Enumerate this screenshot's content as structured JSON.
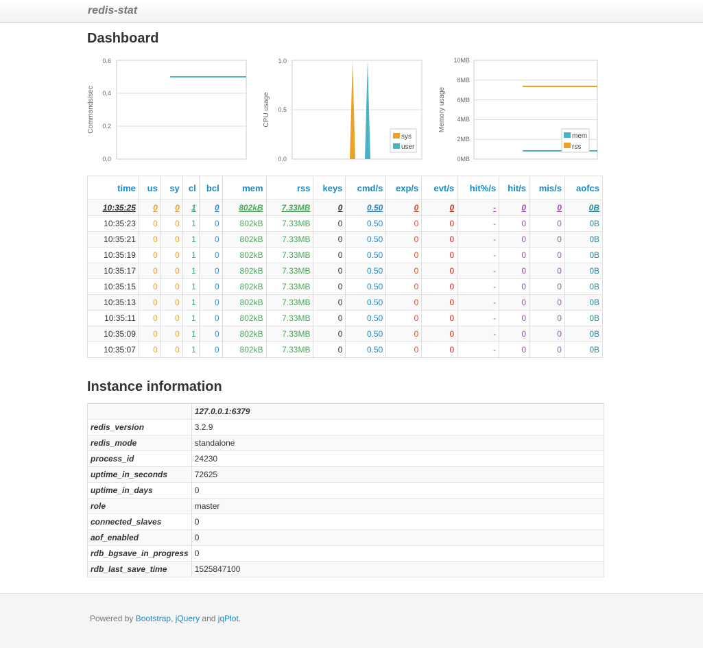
{
  "app": {
    "brand": "redis-stat"
  },
  "dashboard": {
    "title": "Dashboard"
  },
  "charts": [
    {
      "type": "line",
      "ylabel": "Commands/sec",
      "yticks": [
        "0.6",
        "0.4",
        "0.2",
        "0.0"
      ],
      "ylim": [
        0,
        0.6
      ],
      "series": [
        {
          "color": "#4bb2c5",
          "values": [
            0.5,
            0.5
          ]
        }
      ]
    },
    {
      "type": "area",
      "ylabel": "CPU usage",
      "yticks": [
        "1.0",
        "0.5",
        "0.0"
      ],
      "ylim": [
        0,
        1
      ],
      "legend": [
        "sys",
        "user"
      ],
      "series": [
        {
          "name": "sys",
          "color": "#eaa228",
          "peak": 1.0
        },
        {
          "name": "user",
          "color": "#4bb2c5",
          "peak": 1.0
        }
      ]
    },
    {
      "type": "line",
      "ylabel": "Memory usage",
      "yticks": [
        "10MB",
        "8MB",
        "6MB",
        "4MB",
        "2MB",
        "0MB"
      ],
      "ylim": [
        0,
        10
      ],
      "legend": [
        "mem",
        "rss"
      ],
      "series": [
        {
          "name": "mem",
          "color": "#4bb2c5",
          "value": 0.8
        },
        {
          "name": "rss",
          "color": "#eaa228",
          "value": 7.33
        }
      ]
    }
  ],
  "chart_data": [
    {
      "type": "line",
      "ylabel": "Commands/sec",
      "ylim": [
        0,
        0.6
      ],
      "series": [
        {
          "values": [
            0.5,
            0.5
          ]
        }
      ]
    },
    {
      "type": "area",
      "ylabel": "CPU usage",
      "ylim": [
        0,
        1
      ],
      "legend": [
        "sys",
        "user"
      ]
    },
    {
      "type": "line",
      "ylabel": "Memory usage",
      "ylim": [
        0,
        10
      ],
      "legend": [
        "mem",
        "rss"
      ]
    }
  ],
  "stats": {
    "columns": [
      "time",
      "us",
      "sy",
      "cl",
      "bcl",
      "mem",
      "rss",
      "keys",
      "cmd/s",
      "exp/s",
      "evt/s",
      "hit%/s",
      "hit/s",
      "mis/s",
      "aofcs"
    ],
    "rows": [
      [
        "10:35:25",
        "0",
        "0",
        "1",
        "0",
        "802kB",
        "7.33MB",
        "0",
        "0.50",
        "0",
        "0",
        "-",
        "0",
        "0",
        "0B"
      ],
      [
        "10:35:23",
        "0",
        "0",
        "1",
        "0",
        "802kB",
        "7.33MB",
        "0",
        "0.50",
        "0",
        "0",
        "-",
        "0",
        "0",
        "0B"
      ],
      [
        "10:35:21",
        "0",
        "0",
        "1",
        "0",
        "802kB",
        "7.33MB",
        "0",
        "0.50",
        "0",
        "0",
        "-",
        "0",
        "0",
        "0B"
      ],
      [
        "10:35:19",
        "0",
        "0",
        "1",
        "0",
        "802kB",
        "7.33MB",
        "0",
        "0.50",
        "0",
        "0",
        "-",
        "0",
        "0",
        "0B"
      ],
      [
        "10:35:17",
        "0",
        "0",
        "1",
        "0",
        "802kB",
        "7.33MB",
        "0",
        "0.50",
        "0",
        "0",
        "-",
        "0",
        "0",
        "0B"
      ],
      [
        "10:35:15",
        "0",
        "0",
        "1",
        "0",
        "802kB",
        "7.33MB",
        "0",
        "0.50",
        "0",
        "0",
        "-",
        "0",
        "0",
        "0B"
      ],
      [
        "10:35:13",
        "0",
        "0",
        "1",
        "0",
        "802kB",
        "7.33MB",
        "0",
        "0.50",
        "0",
        "0",
        "-",
        "0",
        "0",
        "0B"
      ],
      [
        "10:35:11",
        "0",
        "0",
        "1",
        "0",
        "802kB",
        "7.33MB",
        "0",
        "0.50",
        "0",
        "0",
        "-",
        "0",
        "0",
        "0B"
      ],
      [
        "10:35:09",
        "0",
        "0",
        "1",
        "0",
        "802kB",
        "7.33MB",
        "0",
        "0.50",
        "0",
        "0",
        "-",
        "0",
        "0",
        "0B"
      ],
      [
        "10:35:07",
        "0",
        "0",
        "1",
        "0",
        "802kB",
        "7.33MB",
        "0",
        "0.50",
        "0",
        "0",
        "-",
        "0",
        "0",
        "0B"
      ]
    ]
  },
  "instance": {
    "title": "Instance information",
    "host": "127.0.0.1:6379",
    "rows": [
      {
        "key": "redis_version",
        "value": "3.2.9"
      },
      {
        "key": "redis_mode",
        "value": "standalone"
      },
      {
        "key": "process_id",
        "value": "24230"
      },
      {
        "key": "uptime_in_seconds",
        "value": "72625"
      },
      {
        "key": "uptime_in_days",
        "value": "0"
      },
      {
        "key": "role",
        "value": "master"
      },
      {
        "key": "connected_slaves",
        "value": "0"
      },
      {
        "key": "aof_enabled",
        "value": "0"
      },
      {
        "key": "rdb_bgsave_in_progress",
        "value": "0"
      },
      {
        "key": "rdb_last_save_time",
        "value": "1525847100"
      }
    ]
  },
  "footer": {
    "prefix": "Powered by ",
    "links": [
      "Bootstrap",
      "jQuery",
      "jqPlot"
    ],
    "sep1": ", ",
    "sep2": " and ",
    "suffix": "."
  }
}
